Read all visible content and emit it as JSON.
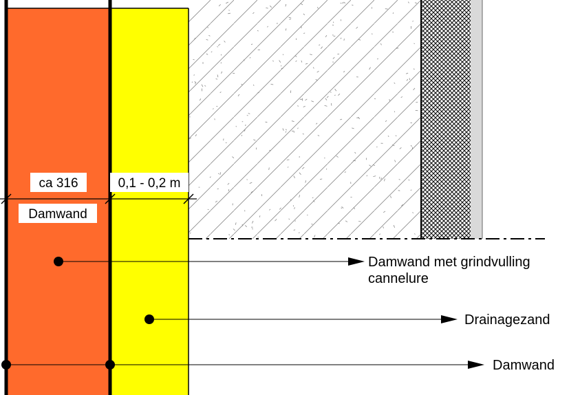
{
  "colors": {
    "damwand_fill": "#ff6a2c",
    "drainagezand_fill": "#ffff00",
    "concrete_hatch": "#777777",
    "wall_crosshatch": "#111111",
    "wall_finish": "#d9d9d9",
    "outline": "#000000"
  },
  "dimensions": {
    "damwand_width": "ca 316",
    "drainage_width": "0,1 - 0,2 m"
  },
  "layer_labels": {
    "damwand": "Damwand"
  },
  "callouts": [
    {
      "id": "grindvulling",
      "lines": [
        "Damwand met grindvulling",
        "cannelure"
      ]
    },
    {
      "id": "drainagezand",
      "lines": [
        "Drainagezand"
      ]
    },
    {
      "id": "damwand",
      "lines": [
        "Damwand"
      ]
    }
  ]
}
